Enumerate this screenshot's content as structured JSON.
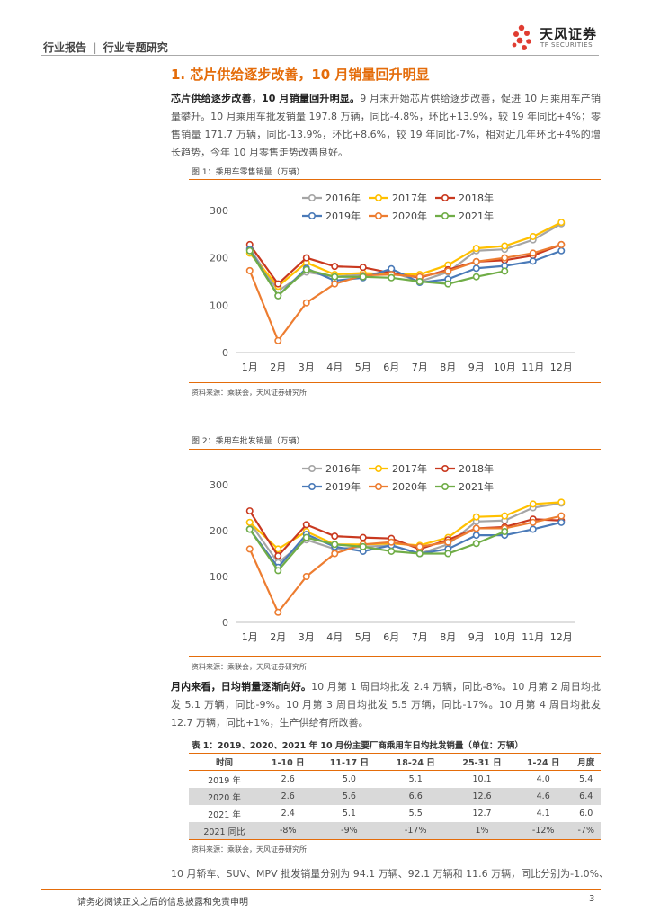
{
  "header": {
    "category": "行业报告",
    "separator": "|",
    "subcategory": "行业专题研究",
    "logo_name": "天风证券",
    "logo_sub": "TF SECURITIES"
  },
  "section_title": "1. 芯片供给逐步改善，10 月销量回升明显",
  "para1": {
    "lead": "芯片供给逐步改善，10 月销量回升明显。",
    "body": "9 月末开始芯片供给逐步改善，促进 10 月乘用车产销量攀升。10 月乘用车批发销量 197.8 万辆，同比-4.8%，环比+13.9%，较 19 年同比+4%；零售销量 171.7 万辆，同比-13.9%，环比+8.6%，较 19 年同比-7%，相对近几年环比+4%的增长趋势，今年 10 月零售走势改善良好。"
  },
  "fig1": {
    "title": "图 1：乘用车零售销量（万辆）",
    "source": "资料来源：乘联会，天风证券研究所"
  },
  "fig2": {
    "title": "图 2：乘用车批发销量（万辆）",
    "source": "资料来源：乘联会，天风证券研究所"
  },
  "chart_data": [
    {
      "type": "line",
      "title": "乘用车零售销量（万辆）",
      "categories": [
        "1月",
        "2月",
        "3月",
        "4月",
        "5月",
        "6月",
        "7月",
        "8月",
        "9月",
        "10月",
        "11月",
        "12月"
      ],
      "ylim": [
        0,
        300
      ],
      "yticks": [
        "0",
        "100",
        "200",
        "300"
      ],
      "legend_position": "top",
      "series": [
        {
          "name": "2016年",
          "color": "#a5a5a5",
          "values": [
            220,
            130,
            170,
            160,
            165,
            170,
            150,
            170,
            215,
            218,
            238,
            272
          ]
        },
        {
          "name": "2017年",
          "color": "#ffc000",
          "values": [
            210,
            140,
            190,
            165,
            168,
            165,
            165,
            185,
            220,
            225,
            245,
            275
          ]
        },
        {
          "name": "2018年",
          "color": "#c9391f",
          "values": [
            228,
            145,
            200,
            182,
            180,
            168,
            158,
            175,
            192,
            195,
            205,
            228
          ]
        },
        {
          "name": "2019年",
          "color": "#4a7ab8",
          "values": [
            218,
            120,
            178,
            152,
            158,
            177,
            148,
            155,
            178,
            183,
            193,
            215
          ]
        },
        {
          "name": "2020年",
          "color": "#ed7d31",
          "values": [
            173,
            25,
            105,
            145,
            163,
            165,
            160,
            172,
            192,
            200,
            210,
            228
          ]
        },
        {
          "name": "2021年",
          "color": "#70ad47",
          "values": [
            215,
            120,
            175,
            160,
            160,
            158,
            150,
            145,
            160,
            172,
            null,
            null
          ]
        }
      ]
    },
    {
      "type": "line",
      "title": "乘用车批发销量（万辆）",
      "categories": [
        "1月",
        "2月",
        "3月",
        "4月",
        "5月",
        "6月",
        "7月",
        "8月",
        "9月",
        "10月",
        "11月",
        "12月"
      ],
      "ylim": [
        0,
        300
      ],
      "yticks": [
        "0",
        "100",
        "200",
        "300"
      ],
      "legend_position": "top",
      "series": [
        {
          "name": "2016年",
          "color": "#a5a5a5",
          "values": [
            218,
            130,
            180,
            160,
            165,
            168,
            150,
            170,
            220,
            222,
            250,
            260
          ]
        },
        {
          "name": "2017年",
          "color": "#ffc000",
          "values": [
            218,
            160,
            198,
            170,
            170,
            172,
            168,
            185,
            230,
            232,
            258,
            262
          ]
        },
        {
          "name": "2018年",
          "color": "#c9391f",
          "values": [
            243,
            145,
            213,
            188,
            185,
            183,
            160,
            180,
            205,
            208,
            225,
            222
          ]
        },
        {
          "name": "2019年",
          "color": "#4a7ab8",
          "values": [
            203,
            120,
            192,
            165,
            155,
            168,
            150,
            160,
            190,
            190,
            203,
            218
          ]
        },
        {
          "name": "2020年",
          "color": "#ed7d31",
          "values": [
            160,
            22,
            100,
            150,
            170,
            175,
            165,
            175,
            205,
            205,
            218,
            232
          ]
        },
        {
          "name": "2021年",
          "color": "#70ad47",
          "values": [
            203,
            113,
            185,
            170,
            165,
            155,
            150,
            150,
            172,
            198,
            null,
            null
          ]
        }
      ]
    }
  ],
  "para2": {
    "lead": "月内来看，日均销量逐渐向好。",
    "body": "10 月第 1 周日均批发 2.4 万辆，同比-8%。10 月第 2 周日均批发 5.1 万辆，同比-9%。10 月第 3 周日均批发 5.5 万辆，同比-17%。10 月第 4 周日均批发 12.7 万辆，同比+1%，生产供给有所改善。"
  },
  "table": {
    "title": "表 1：2019、2020、2021 年 10 月份主要厂商乘用车日均批发销量（单位：万辆）",
    "headers": [
      "时间",
      "1-10 日",
      "11-17 日",
      "18-24 日",
      "25-31 日",
      "1-24 日",
      "月度"
    ],
    "rows": [
      [
        "2019 年",
        "2.6",
        "5.0",
        "5.1",
        "10.1",
        "4.0",
        "5.4"
      ],
      [
        "2020 年",
        "2.6",
        "5.6",
        "6.6",
        "12.6",
        "4.6",
        "6.4"
      ],
      [
        "2021 年",
        "2.4",
        "5.1",
        "5.5",
        "12.7",
        "4.1",
        "6.0"
      ],
      [
        "2021 同比",
        "-8%",
        "-9%",
        "-17%",
        "1%",
        "-12%",
        "-7%"
      ]
    ],
    "source": "资料来源：乘联会，天风证券研究所"
  },
  "para3": "10 月轿车、SUV、MPV 批发销量分别为 94.1 万辆、92.1 万辆和 11.6 万辆，同比分别为-1.0%、",
  "footer": {
    "disclaimer": "请务必阅读正文之后的信息披露和免责申明",
    "page": "3"
  }
}
